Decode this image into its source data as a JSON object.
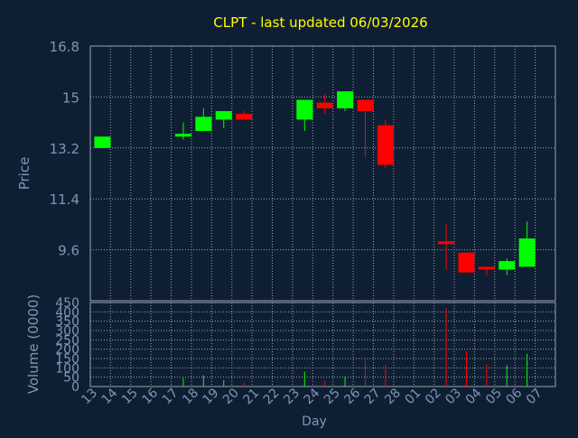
{
  "chart_data": {
    "type": "candlestick",
    "title": "CLPT - last updated 06/03/2026",
    "colors": {
      "background": "#0f1f33",
      "plot_background": "#0f1f33",
      "grid": "#9aa3ad",
      "axis_text": "#7f95b5",
      "title": "#ffff00",
      "up": "#00ff00",
      "down": "#ff0000"
    },
    "price_panel": {
      "ylabel": "Price",
      "ylim": [
        7.8,
        16.8
      ],
      "y_ticks": [
        "16.8",
        "15",
        "13.2",
        "11.4",
        "9.6"
      ],
      "y_tick_values": [
        16.8,
        15,
        13.2,
        11.4,
        9.6
      ],
      "grid": true
    },
    "volume_panel": {
      "ylabel": "Volume (0000)",
      "ylim": [
        0,
        450
      ],
      "y_ticks": [
        "450",
        "400",
        "350",
        "300",
        "250",
        "200",
        "150",
        "100",
        "50",
        "0"
      ],
      "y_tick_values": [
        450,
        400,
        350,
        300,
        250,
        200,
        150,
        100,
        50,
        0
      ],
      "grid": true
    },
    "xlabel": "Day",
    "x_ticks": [
      "13",
      "14",
      "15",
      "16",
      "17",
      "18",
      "19",
      "20",
      "21",
      "22",
      "23",
      "24",
      "25",
      "26",
      "27",
      "28",
      "01",
      "02",
      "03",
      "04",
      "05",
      "06",
      "07"
    ],
    "candles": [
      {
        "day": "13",
        "open": 13.2,
        "high": 13.6,
        "low": 13.2,
        "close": 13.6,
        "volume": 0
      },
      {
        "day": "17",
        "open": 13.6,
        "high": 14.1,
        "low": 13.5,
        "close": 13.7,
        "volume": 45
      },
      {
        "day": "18",
        "open": 13.8,
        "high": 14.6,
        "low": 13.8,
        "close": 14.3,
        "volume": 60
      },
      {
        "day": "19",
        "open": 14.2,
        "high": 14.5,
        "low": 13.9,
        "close": 14.5,
        "volume": 35
      },
      {
        "day": "20",
        "open": 14.4,
        "high": 14.5,
        "low": 14.2,
        "close": 14.2,
        "volume": 20
      },
      {
        "day": "23",
        "open": 14.2,
        "high": 14.9,
        "low": 13.8,
        "close": 14.9,
        "volume": 80
      },
      {
        "day": "24",
        "open": 14.8,
        "high": 15.1,
        "low": 14.4,
        "close": 14.6,
        "volume": 30
      },
      {
        "day": "25",
        "open": 14.6,
        "high": 15.2,
        "low": 14.5,
        "close": 15.2,
        "volume": 55
      },
      {
        "day": "26",
        "open": 14.9,
        "high": 14.9,
        "low": 12.9,
        "close": 14.5,
        "volume": 145
      },
      {
        "day": "27",
        "open": 14.0,
        "high": 14.2,
        "low": 12.5,
        "close": 12.6,
        "volume": 115
      },
      {
        "day": "02",
        "open": 9.9,
        "high": 10.5,
        "low": 8.9,
        "close": 9.8,
        "volume": 420
      },
      {
        "day": "03",
        "open": 9.5,
        "high": 9.5,
        "low": 8.8,
        "close": 8.8,
        "volume": 190
      },
      {
        "day": "04",
        "open": 9.0,
        "high": 9.0,
        "low": 8.7,
        "close": 8.95,
        "volume": 120
      },
      {
        "day": "05",
        "open": 8.9,
        "high": 9.3,
        "low": 8.7,
        "close": 9.2,
        "volume": 115
      },
      {
        "day": "06",
        "open": 9.0,
        "high": 10.6,
        "low": 9.0,
        "close": 10.0,
        "volume": 175
      }
    ]
  }
}
